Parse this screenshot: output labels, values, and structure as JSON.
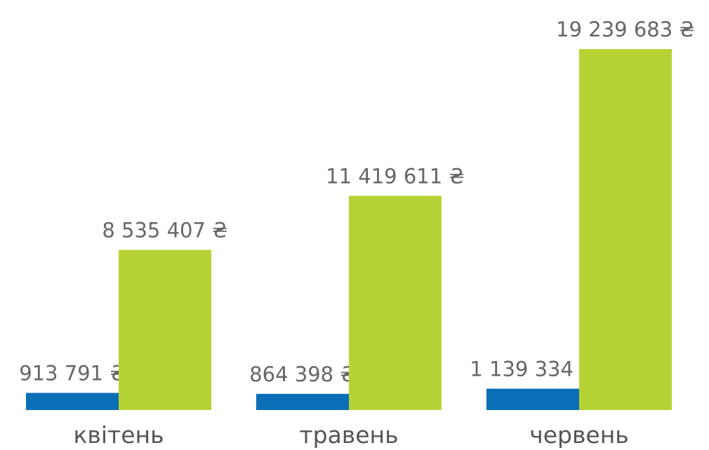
{
  "chart_data": {
    "type": "bar",
    "categories": [
      "квітень",
      "травень",
      "червень"
    ],
    "series": [
      {
        "color": "#0a6fb6",
        "values": [
          913791,
          864398,
          1139334
        ],
        "value_labels": [
          "913 791 ₴",
          "864 398 ₴",
          "1 139 334 ₴"
        ]
      },
      {
        "color": "#b6d335",
        "values": [
          8535407,
          11419611,
          19239683
        ],
        "value_labels": [
          "8 535 407 ₴",
          "11 419 611 ₴",
          "19 239 683 ₴"
        ]
      }
    ]
  }
}
